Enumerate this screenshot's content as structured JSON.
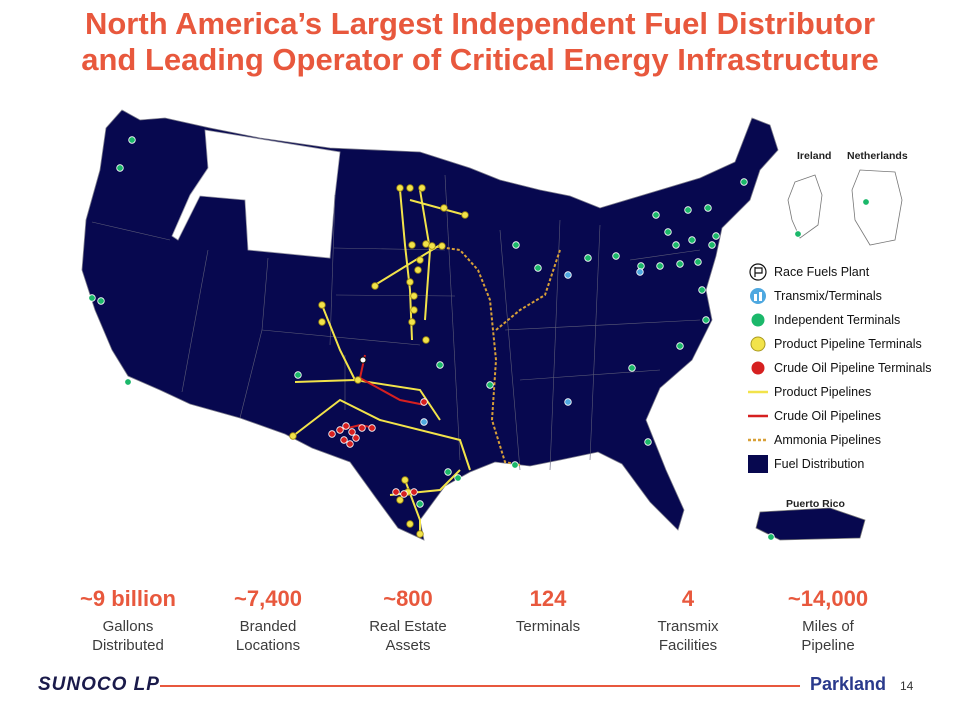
{
  "title": {
    "line1": "North America’s Largest Independent Fuel Distributor",
    "line2": "and Leading Operator of Critical Energy Infrastructure"
  },
  "insets": {
    "ireland": "Ireland",
    "netherlands": "Netherlands",
    "puerto_rico": "Puerto Rico"
  },
  "legend": [
    {
      "label": "Race Fuels Plant",
      "icon": "race-flag-icon"
    },
    {
      "label": "Transmix/Terminals",
      "icon": "transmix-terminal-icon"
    },
    {
      "label": "Independent Terminals",
      "icon": "independent-terminal-icon"
    },
    {
      "label": "Product Pipeline Terminals",
      "icon": "product-pipeline-terminal-icon"
    },
    {
      "label": "Crude Oil Pipeline Terminals",
      "icon": "crude-oil-terminal-icon"
    },
    {
      "label": "Product Pipelines",
      "icon": "product-pipeline-line-icon"
    },
    {
      "label": "Crude Oil Pipelines",
      "icon": "crude-oil-pipeline-line-icon"
    },
    {
      "label": "Ammonia Pipelines",
      "icon": "ammonia-pipeline-line-icon"
    },
    {
      "label": "Fuel Distribution",
      "icon": "fuel-distribution-swatch-icon"
    }
  ],
  "colors": {
    "title": "#e8583d",
    "fuel_distribution": "#07084f",
    "independent_terminal": "#1bb86a",
    "product_pipeline": "#f2e34a",
    "crude_oil": "#d62020",
    "ammonia": "#d8a038",
    "transmix": "#4ea8e0"
  },
  "stats": [
    {
      "value": "~9 billion",
      "label1": "Gallons",
      "label2": "Distributed"
    },
    {
      "value": "~7,400",
      "label1": "Branded",
      "label2": "Locations"
    },
    {
      "value": "~800",
      "label1": "Real Estate",
      "label2": "Assets"
    },
    {
      "value": "124",
      "label1": "Terminals",
      "label2": ""
    },
    {
      "value": "4",
      "label1": "Transmix",
      "label2": "Facilities"
    },
    {
      "value": "~14,000",
      "label1": "Miles of",
      "label2": "Pipeline"
    }
  ],
  "footer": {
    "left_logo": "SUNOCO LP",
    "right_logo": "Parkland",
    "page_number": "14"
  }
}
